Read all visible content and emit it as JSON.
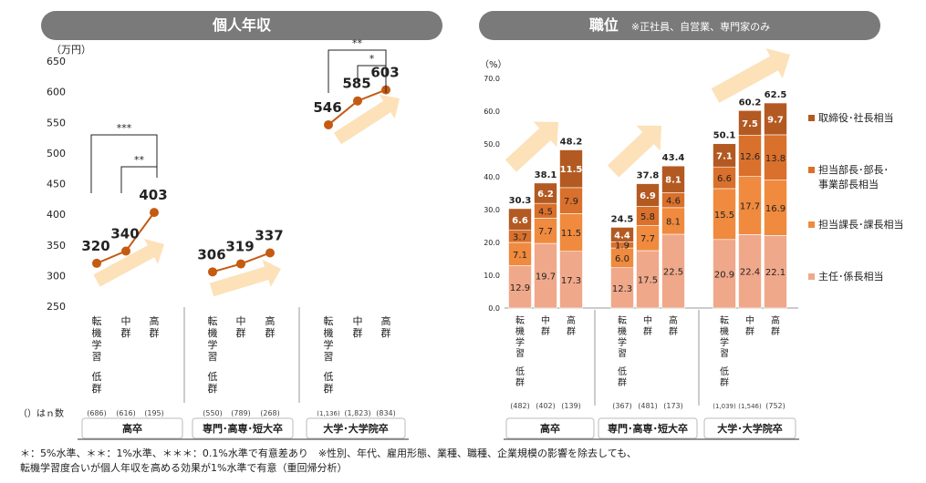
{
  "left": {
    "header": "個人年収",
    "unit_label": "（万円）",
    "y_ticks": [
      "650",
      "600",
      "550",
      "500",
      "450",
      "400",
      "350",
      "300",
      "250"
    ],
    "n_note": "（）はｎ数",
    "groups": [
      {
        "name": "高卒",
        "values": [
          "320",
          "340",
          "403"
        ],
        "n": [
          "(686)",
          "(616)",
          "(195)"
        ],
        "sig": [
          "***",
          "**"
        ]
      },
      {
        "name": "専門･高専･短大卒",
        "values": [
          "306",
          "319",
          "337"
        ],
        "n": [
          "(550)",
          "(789)",
          "(268)"
        ],
        "sig": []
      },
      {
        "name": "大学･大学院卒",
        "values": [
          "546",
          "585",
          "603"
        ],
        "n": [
          "(1,136)",
          "(1,823)",
          "(834)"
        ],
        "sig": [
          "**",
          "*"
        ]
      }
    ]
  },
  "right": {
    "header": "職位",
    "header_note": "※正社員、自営業、専門家のみ",
    "unit_label": "（%）",
    "y_ticks": [
      "70.0",
      "60.0",
      "50.0",
      "40.0",
      "30.0",
      "20.0",
      "10.0",
      "0.0"
    ],
    "legend": [
      "取締役･社長相当",
      "担当部長･部長･\n事業部長相当",
      "担当課長･課長相当",
      "主任･係長相当"
    ],
    "groups": [
      {
        "name": "高卒",
        "n": [
          "(482)",
          "(402)",
          "(139)"
        ],
        "totals": [
          "30.3",
          "38.1",
          "48.2"
        ],
        "stacks": [
          [
            "12.9",
            "7.1",
            "3.7",
            "6.6"
          ],
          [
            "19.7",
            "7.7",
            "4.5",
            "6.2"
          ],
          [
            "17.3",
            "11.5",
            "7.9",
            "11.5"
          ]
        ]
      },
      {
        "name": "専門･高専･短大卒",
        "n": [
          "(367)",
          "(481)",
          "(173)"
        ],
        "totals": [
          "24.5",
          "37.8",
          "43.4"
        ],
        "stacks": [
          [
            "12.3",
            "6.0",
            "1.9",
            "4.4"
          ],
          [
            "17.5",
            "7.7",
            "5.8",
            "6.9"
          ],
          [
            "22.5",
            "8.1",
            "4.6",
            "8.1"
          ]
        ]
      },
      {
        "name": "大学･大学院卒",
        "n": [
          "(1,039)",
          "(1,546)",
          "(752)"
        ],
        "totals": [
          "50.1",
          "60.2",
          "62.5"
        ],
        "stacks": [
          [
            "20.9",
            "15.5",
            "6.6",
            "7.1"
          ],
          [
            "22.4",
            "17.7",
            "12.6",
            "7.5"
          ],
          [
            "22.1",
            "16.9",
            "13.8",
            "9.7"
          ]
        ]
      }
    ]
  },
  "categories": [
    "転機学習\n低群",
    "中群",
    "高群"
  ],
  "footnote_1": "＊：5%水準、＊＊：1%水準、＊＊＊：0.1%水準で有意差あり　※性別、年代、雇用形態、業種、職種、企業規模の影響を除去しても、",
  "footnote_2": "転機学習度合いが個人年収を高める効果が1%水準で有意（重回帰分析）",
  "chart_data": [
    {
      "type": "line",
      "title": "個人年収",
      "ylabel": "（万円）",
      "ylim": [
        250,
        650
      ],
      "categories": [
        "転機学習低群",
        "中群",
        "高群"
      ],
      "series": [
        {
          "name": "高卒",
          "values": [
            320,
            340,
            403
          ]
        },
        {
          "name": "専門･高専･短大卒",
          "values": [
            306,
            319,
            337
          ]
        },
        {
          "name": "大学･大学院卒",
          "values": [
            546,
            585,
            603
          ]
        }
      ]
    },
    {
      "type": "bar",
      "title": "職位",
      "ylabel": "（%）",
      "ylim": [
        0,
        70
      ],
      "stacked": true,
      "categories": [
        "高卒 低群",
        "高卒 中群",
        "高卒 高群",
        "専門 低群",
        "専門 中群",
        "専門 高群",
        "大学 低群",
        "大学 中群",
        "大学 高群"
      ],
      "series": [
        {
          "name": "主任･係長相当",
          "values": [
            12.9,
            19.7,
            17.3,
            12.3,
            17.5,
            22.5,
            20.9,
            22.4,
            22.1
          ]
        },
        {
          "name": "担当課長･課長相当",
          "values": [
            7.1,
            7.7,
            11.5,
            6.0,
            7.7,
            8.1,
            15.5,
            17.7,
            16.9
          ]
        },
        {
          "name": "担当部長･部長･事業部長相当",
          "values": [
            3.7,
            4.5,
            7.9,
            1.9,
            5.8,
            4.6,
            6.6,
            12.6,
            13.8
          ]
        },
        {
          "name": "取締役･社長相当",
          "values": [
            6.6,
            6.2,
            11.5,
            4.4,
            6.9,
            8.1,
            7.1,
            7.5,
            9.7
          ]
        }
      ],
      "colors": [
        "#f0a88a",
        "#ef8a3e",
        "#d9702c",
        "#b35a22"
      ]
    }
  ]
}
